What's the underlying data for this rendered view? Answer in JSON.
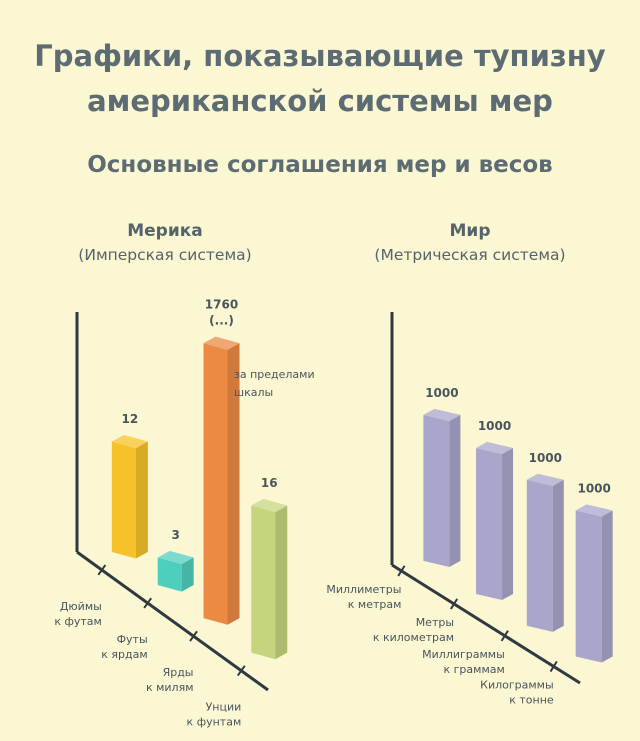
{
  "title_line1": "Графики, показывающие тупизну",
  "title_line2": "американской системы мер",
  "subtitle": "Основные соглашения мер и весов",
  "chart_data": [
    {
      "type": "bar",
      "panel_title": "Мерика",
      "panel_subtitle": "(Имперская система)",
      "categories": [
        "Дюймы к футам",
        "Футы к ярдам",
        "Ярды к милям",
        "Унции к фунтам"
      ],
      "category_lines": [
        [
          "Дюймы",
          "к футам"
        ],
        [
          "Футы",
          "к ярдам"
        ],
        [
          "Ярды",
          "к милям"
        ],
        [
          "Унции",
          "к фунтам"
        ]
      ],
      "values": [
        12,
        3,
        1760,
        16
      ],
      "value_labels": [
        "12",
        "3",
        "1760",
        "16"
      ],
      "value_label_extra": [
        "",
        "",
        "(...)",
        ""
      ],
      "colors": [
        "#f6c22a",
        "#4ecfbd",
        "#ec8a44",
        "#c5d57d"
      ],
      "annotation": [
        "за пределами",
        "шкалы"
      ],
      "out_of_scale": [
        false,
        false,
        true,
        false
      ]
    },
    {
      "type": "bar",
      "panel_title": "Мир",
      "panel_subtitle": "(Метрическая система)",
      "categories": [
        "Миллиметры к метрам",
        "Метры к километрам",
        "Миллиграммы к граммам",
        "Килограммы к тонне"
      ],
      "category_lines": [
        [
          "Миллиметры",
          "к метрам"
        ],
        [
          "Метры",
          "к километрам"
        ],
        [
          "Миллиграммы",
          "к граммам"
        ],
        [
          "Килограммы",
          "к тонне"
        ]
      ],
      "values": [
        1000,
        1000,
        1000,
        1000
      ],
      "value_labels": [
        "1000",
        "1000",
        "1000",
        "1000"
      ],
      "colors": [
        "#a9a5cb",
        "#a9a5cb",
        "#a9a5cb",
        "#a9a5cb"
      ]
    }
  ]
}
